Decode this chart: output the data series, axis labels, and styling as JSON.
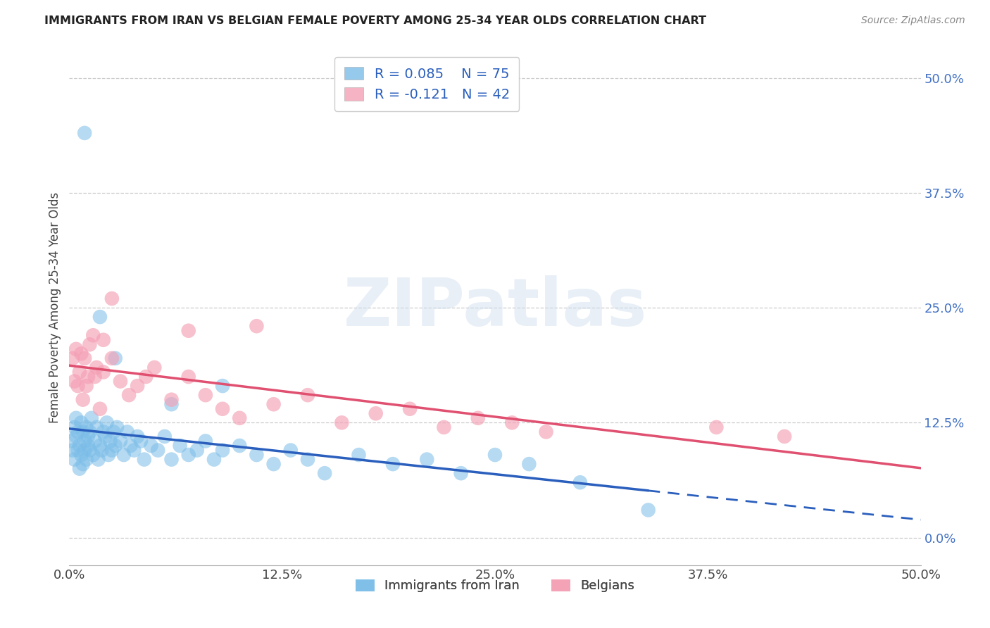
{
  "title": "IMMIGRANTS FROM IRAN VS BELGIAN FEMALE POVERTY AMONG 25-34 YEAR OLDS CORRELATION CHART",
  "source": "Source: ZipAtlas.com",
  "ylabel_label": "Female Poverty Among 25-34 Year Olds",
  "xmin": 0.0,
  "xmax": 0.5,
  "ymin": -0.03,
  "ymax": 0.53,
  "yticks": [
    0.0,
    0.125,
    0.25,
    0.375,
    0.5
  ],
  "ytick_labels": [
    "0.0%",
    "12.5%",
    "25.0%",
    "37.5%",
    "50.0%"
  ],
  "xticks": [
    0.0,
    0.125,
    0.25,
    0.375,
    0.5
  ],
  "xtick_labels": [
    "0.0%",
    "12.5%",
    "25.0%",
    "37.5%",
    "50.0%"
  ],
  "blue_color": "#7bbde8",
  "pink_color": "#f4a0b5",
  "blue_line_color": "#2b5fbd",
  "pink_line_color": "#e05070",
  "blue_R": 0.085,
  "blue_N": 75,
  "pink_R": -0.121,
  "pink_N": 42,
  "bottom_legend_blue": "Immigrants from Iran",
  "bottom_legend_pink": "Belgians",
  "blue_x": [
    0.001,
    0.002,
    0.003,
    0.003,
    0.004,
    0.004,
    0.005,
    0.005,
    0.006,
    0.006,
    0.007,
    0.007,
    0.008,
    0.008,
    0.009,
    0.009,
    0.01,
    0.01,
    0.011,
    0.011,
    0.012,
    0.012,
    0.013,
    0.014,
    0.015,
    0.016,
    0.017,
    0.018,
    0.019,
    0.02,
    0.021,
    0.022,
    0.023,
    0.024,
    0.025,
    0.026,
    0.027,
    0.028,
    0.03,
    0.032,
    0.034,
    0.036,
    0.038,
    0.04,
    0.042,
    0.044,
    0.048,
    0.052,
    0.056,
    0.06,
    0.065,
    0.07,
    0.075,
    0.08,
    0.085,
    0.09,
    0.1,
    0.11,
    0.12,
    0.13,
    0.14,
    0.15,
    0.17,
    0.19,
    0.21,
    0.23,
    0.25,
    0.27,
    0.3,
    0.34,
    0.009,
    0.018,
    0.027,
    0.06,
    0.09
  ],
  "blue_y": [
    0.105,
    0.095,
    0.12,
    0.085,
    0.11,
    0.13,
    0.095,
    0.115,
    0.075,
    0.1,
    0.09,
    0.125,
    0.08,
    0.115,
    0.095,
    0.105,
    0.085,
    0.12,
    0.11,
    0.1,
    0.095,
    0.115,
    0.13,
    0.09,
    0.105,
    0.12,
    0.085,
    0.1,
    0.095,
    0.115,
    0.11,
    0.125,
    0.09,
    0.105,
    0.095,
    0.115,
    0.1,
    0.12,
    0.105,
    0.09,
    0.115,
    0.1,
    0.095,
    0.11,
    0.105,
    0.085,
    0.1,
    0.095,
    0.11,
    0.085,
    0.1,
    0.09,
    0.095,
    0.105,
    0.085,
    0.095,
    0.1,
    0.09,
    0.08,
    0.095,
    0.085,
    0.07,
    0.09,
    0.08,
    0.085,
    0.07,
    0.09,
    0.08,
    0.06,
    0.03,
    0.44,
    0.24,
    0.195,
    0.145,
    0.165
  ],
  "pink_x": [
    0.002,
    0.003,
    0.004,
    0.005,
    0.006,
    0.007,
    0.008,
    0.009,
    0.01,
    0.011,
    0.012,
    0.014,
    0.016,
    0.018,
    0.02,
    0.025,
    0.03,
    0.035,
    0.04,
    0.05,
    0.06,
    0.07,
    0.08,
    0.09,
    0.1,
    0.12,
    0.14,
    0.16,
    0.18,
    0.2,
    0.22,
    0.24,
    0.26,
    0.28,
    0.015,
    0.02,
    0.025,
    0.045,
    0.07,
    0.11,
    0.38,
    0.42
  ],
  "pink_y": [
    0.195,
    0.17,
    0.205,
    0.165,
    0.18,
    0.2,
    0.15,
    0.195,
    0.165,
    0.175,
    0.21,
    0.22,
    0.185,
    0.14,
    0.215,
    0.195,
    0.17,
    0.155,
    0.165,
    0.185,
    0.15,
    0.175,
    0.155,
    0.14,
    0.13,
    0.145,
    0.155,
    0.125,
    0.135,
    0.14,
    0.12,
    0.13,
    0.125,
    0.115,
    0.175,
    0.18,
    0.26,
    0.175,
    0.225,
    0.23,
    0.12,
    0.11
  ]
}
